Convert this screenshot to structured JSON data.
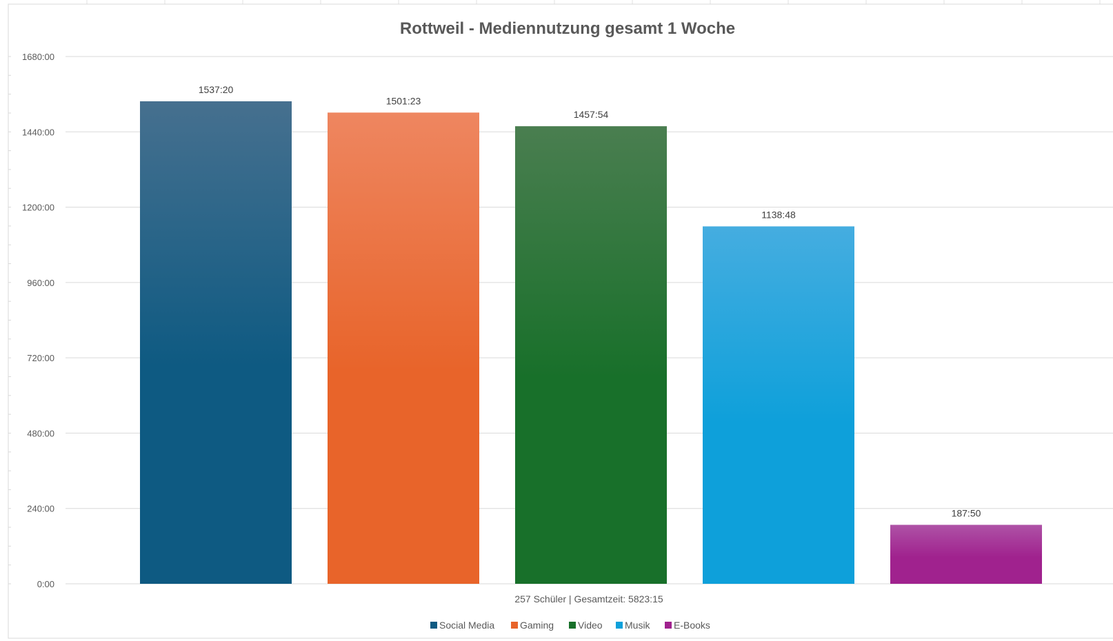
{
  "chart_data": {
    "type": "bar",
    "title": "Rottweil - Mediennutzung gesamt 1 Woche",
    "xlabel": "257 Schüler | Gesamtzeit: 5823:15",
    "ylabel": "",
    "ylim": [
      0,
      1680
    ],
    "y_unit": "hours:minutes",
    "y_ticks": [
      {
        "value": 0,
        "label": "0:00"
      },
      {
        "value": 240,
        "label": "240:00"
      },
      {
        "value": 480,
        "label": "480:00"
      },
      {
        "value": 720,
        "label": "720:00"
      },
      {
        "value": 960,
        "label": "960:00"
      },
      {
        "value": 1200,
        "label": "1200:00"
      },
      {
        "value": 1440,
        "label": "1440:00"
      },
      {
        "value": 1680,
        "label": "1680:00"
      }
    ],
    "grid": true,
    "legend_position": "bottom",
    "categories": [
      "Social Media",
      "Gaming",
      "Video",
      "Musik",
      "E-Books"
    ],
    "values": [
      1537.333,
      1501.383,
      1457.9,
      1138.8,
      187.833
    ],
    "data_labels": [
      "1537:20",
      "1501:23",
      "1457:54",
      "1138:48",
      "187:50"
    ],
    "colors": [
      "#0e5a82",
      "#e8642a",
      "#18702a",
      "#0ea0da",
      "#a0228e"
    ],
    "colors_top": [
      "#46708f",
      "#ee8660",
      "#4a7e50",
      "#45ade0",
      "#ae52a6"
    ]
  }
}
